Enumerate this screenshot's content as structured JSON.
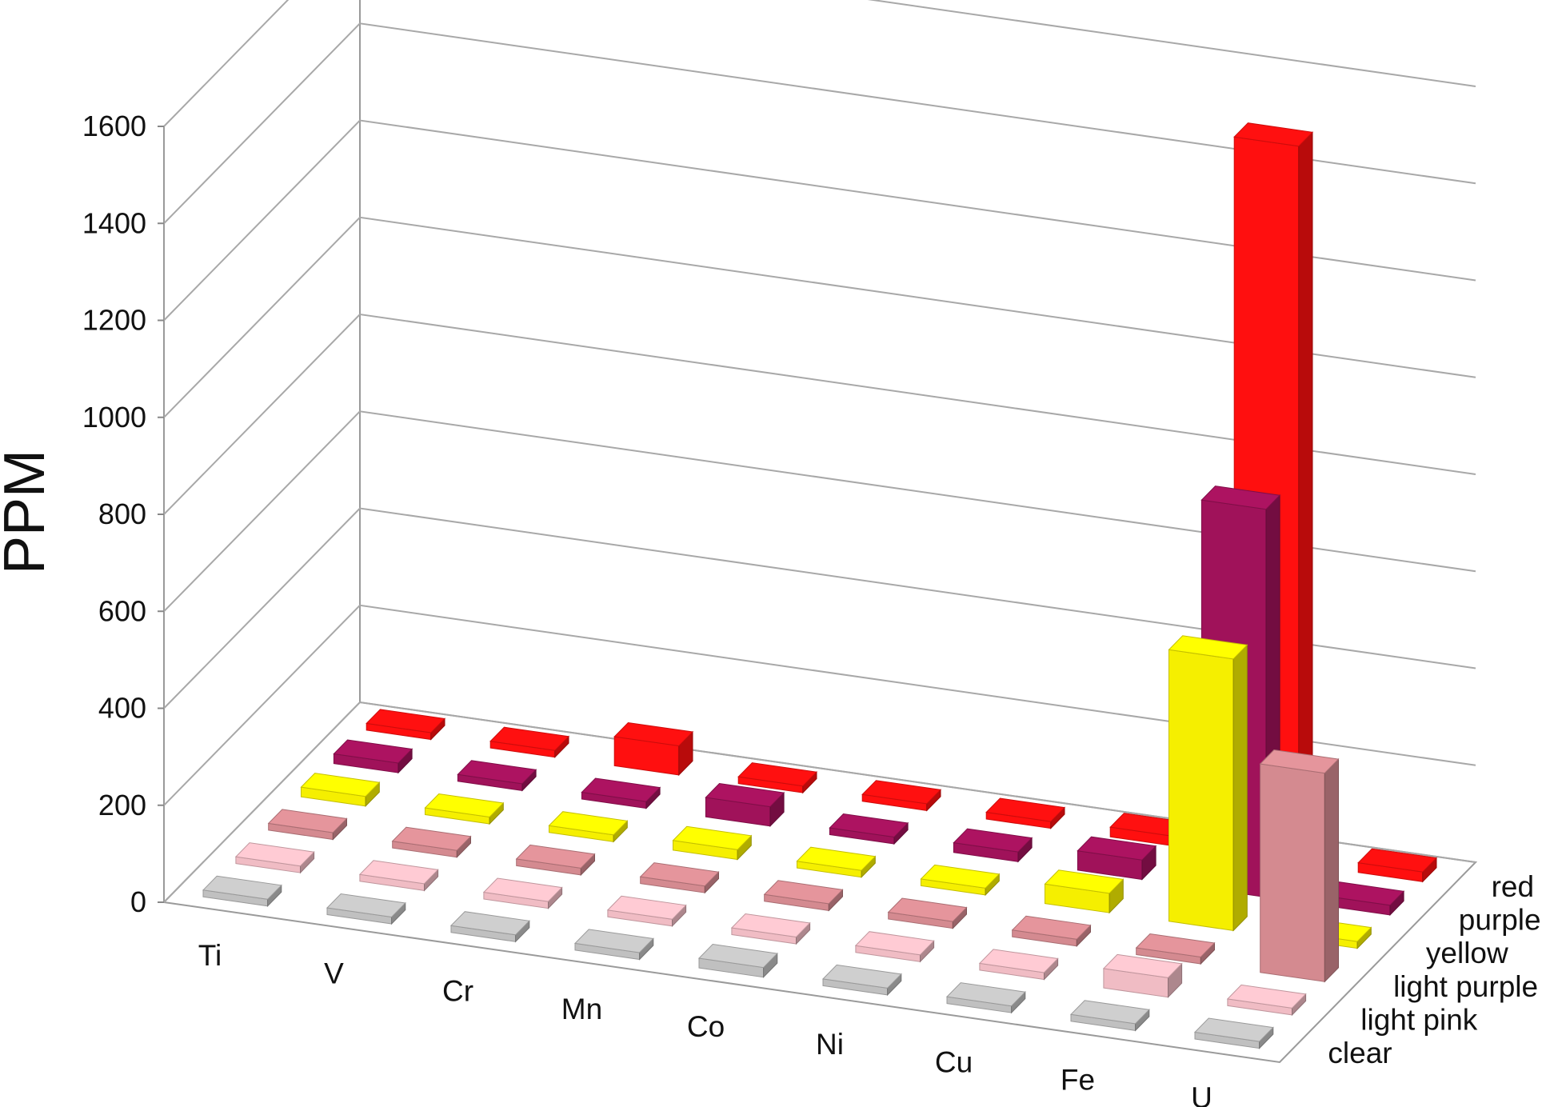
{
  "chart_data": {
    "type": "bar",
    "bar_style": "3d",
    "ylabel": "PPM",
    "ylim": [
      0,
      1600
    ],
    "yticks": [
      0,
      200,
      400,
      600,
      800,
      1000,
      1200,
      1400,
      1600
    ],
    "grid": true,
    "categories": [
      "Ti",
      "V",
      "Cr",
      "Mn",
      "Co",
      "Ni",
      "Cu",
      "Fe",
      "U"
    ],
    "series": [
      {
        "name": "clear",
        "color": "#c0c0c0",
        "values": [
          0,
          0,
          0,
          0,
          20,
          0,
          0,
          0,
          0
        ]
      },
      {
        "name": "light pink",
        "color": "#f0bcc4",
        "values": [
          0,
          0,
          0,
          0,
          0,
          0,
          0,
          40,
          0
        ]
      },
      {
        "name": "light purple",
        "color": "#d48a90",
        "values": [
          0,
          0,
          0,
          0,
          0,
          0,
          0,
          0,
          430
        ]
      },
      {
        "name": "yellow",
        "color": "#f5ef00",
        "values": [
          20,
          10,
          10,
          20,
          10,
          10,
          40,
          560,
          10
        ]
      },
      {
        "name": "purple",
        "color": "#a0125a",
        "values": [
          20,
          10,
          10,
          40,
          10,
          20,
          40,
          800,
          20
        ]
      },
      {
        "name": "red",
        "color": "#ff0f0f",
        "values": [
          10,
          10,
          60,
          10,
          10,
          10,
          20,
          1480,
          20
        ]
      }
    ]
  }
}
